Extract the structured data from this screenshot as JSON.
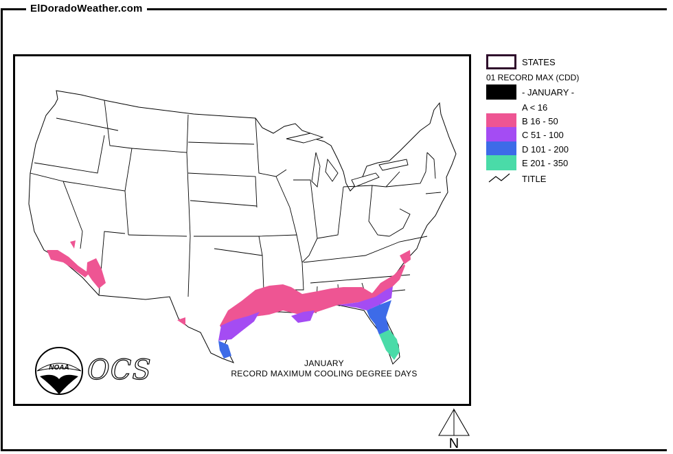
{
  "header": {
    "site_title": "ElDoradoWeather.com"
  },
  "map": {
    "caption_line1": "JANUARY",
    "caption_line2": "RECORD MAXIMUM COOLING DEGREE DAYS",
    "logo_ocs_text": "OCS",
    "logo_noaa_text": "NOAA",
    "north_label": "N"
  },
  "legend": {
    "states_label": "STATES",
    "subtitle": "01 RECORD MAX (CDD)",
    "period_label": "- JANUARY -",
    "classes": [
      {
        "label": "A < 16",
        "color": "#ffffff"
      },
      {
        "label": "B 16 - 50",
        "color": "#ee5593"
      },
      {
        "label": "C 51 - 100",
        "color": "#a44cf3"
      },
      {
        "label": "D 101 - 200",
        "color": "#3d6be8"
      },
      {
        "label": "E 201 - 350",
        "color": "#4adba8"
      }
    ],
    "title_label": "TITLE",
    "states_border_color": "#2e0a2a",
    "period_swatch_color": "#000000"
  }
}
